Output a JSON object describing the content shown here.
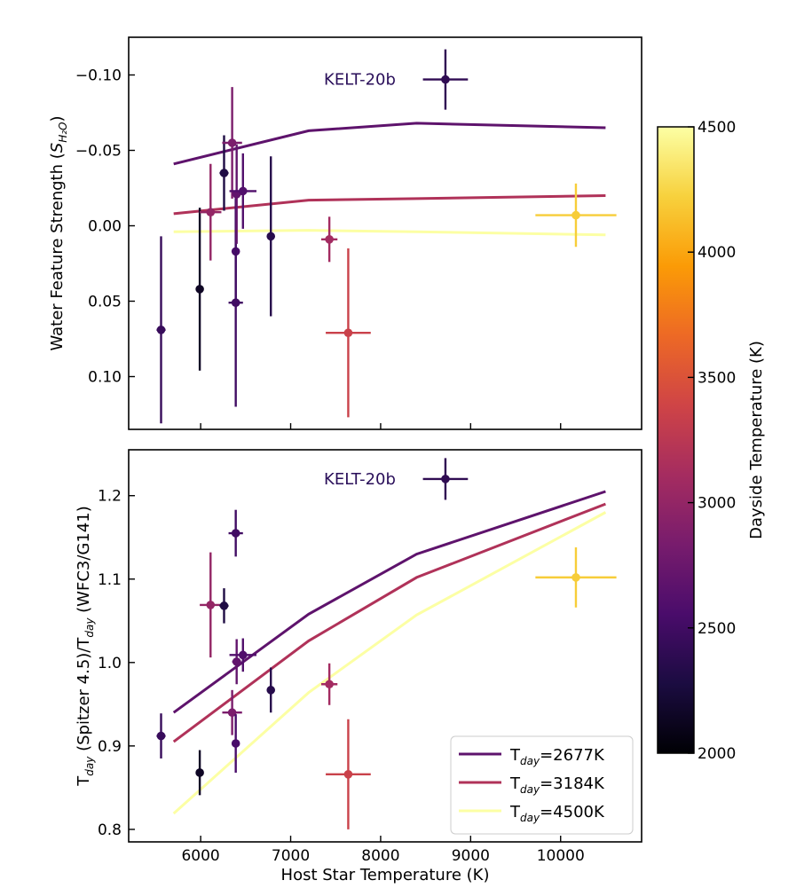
{
  "chart_data": [
    {
      "type": "scatter",
      "panel": "top",
      "ylabel_main": "Water Feature Strength (",
      "ylabel_sym": "S",
      "ylabel_sub": "H₂O",
      "ylabel_close": ")",
      "xlim": [
        5200,
        10900
      ],
      "ylim": [
        0.135,
        -0.125
      ],
      "y_inverted": true,
      "xticks": [
        6000,
        7000,
        8000,
        9000,
        10000
      ],
      "yticks": [
        -0.1,
        -0.05,
        0.0,
        0.05,
        0.1
      ],
      "ytick_labels": [
        "−0.10",
        "−0.05",
        "0.00",
        "0.05",
        "0.10"
      ],
      "annotation": {
        "text": "KELT-20b",
        "x": 7370,
        "y": -0.097
      },
      "points": [
        {
          "x": 5560,
          "y": 0.069,
          "xerr": 50,
          "yerr": 0.062,
          "tday": 2450
        },
        {
          "x": 5990,
          "y": 0.042,
          "xerr": 40,
          "yerr": 0.054,
          "tday": 2150
        },
        {
          "x": 6110,
          "y": -0.009,
          "xerr": 120,
          "yerr": 0.032,
          "tday": 3000
        },
        {
          "x": 6260,
          "y": -0.035,
          "xerr": 50,
          "yerr": 0.025,
          "tday": 2300
        },
        {
          "x": 6350,
          "y": -0.055,
          "xerr": 110,
          "yerr": 0.037,
          "tday": 2850
        },
        {
          "x": 6390,
          "y": 0.017,
          "xerr": 30,
          "yerr": 0.037,
          "tday": 2550
        },
        {
          "x": 6390,
          "y": 0.051,
          "xerr": 80,
          "yerr": 0.069,
          "tday": 2500
        },
        {
          "x": 6400,
          "y": -0.021,
          "xerr": 50,
          "yerr": 0.033,
          "tday": 2700
        },
        {
          "x": 6470,
          "y": -0.023,
          "xerr": 150,
          "yerr": 0.025,
          "tday": 2600
        },
        {
          "x": 6780,
          "y": 0.007,
          "xerr": 30,
          "yerr": 0.053,
          "tday": 2350
        },
        {
          "x": 7430,
          "y": 0.009,
          "xerr": 90,
          "yerr": 0.015,
          "tday": 3100
        },
        {
          "x": 7640,
          "y": 0.071,
          "xerr": 250,
          "yerr": 0.056,
          "tday": 3350
        },
        {
          "x": 8720,
          "y": -0.097,
          "xerr": 250,
          "yerr": 0.02,
          "tday": 2400
        },
        {
          "x": 10170,
          "y": -0.007,
          "xerr": 450,
          "yerr": 0.021,
          "tday": 4200
        }
      ],
      "series": [
        {
          "name": "T_day=2677K",
          "tday": 2677,
          "x": [
            5700,
            7200,
            8400,
            10500
          ],
          "values": [
            -0.041,
            -0.063,
            -0.068,
            -0.065
          ]
        },
        {
          "name": "T_day=3184K",
          "tday": 3184,
          "x": [
            5700,
            7200,
            8400,
            10500
          ],
          "values": [
            -0.008,
            -0.017,
            -0.018,
            -0.02
          ]
        },
        {
          "name": "T_day=4500K",
          "tday": 4500,
          "x": [
            5700,
            7200,
            8400,
            10500
          ],
          "values": [
            0.004,
            0.003,
            0.004,
            0.006
          ]
        }
      ]
    },
    {
      "type": "scatter",
      "panel": "bottom",
      "xlabel": "Host Star Temperature (K)",
      "ylabel_t1": "T",
      "ylabel_s1": "day",
      "ylabel_mid": " (Spitzer 4.5)/T",
      "ylabel_s2": "day",
      "ylabel_end": " (WFC3/G141)",
      "xlim": [
        5200,
        10900
      ],
      "ylim": [
        0.785,
        1.255
      ],
      "xticks": [
        6000,
        7000,
        8000,
        9000,
        10000
      ],
      "xtick_labels": [
        "6000",
        "7000",
        "8000",
        "9000",
        "10000"
      ],
      "yticks": [
        0.8,
        0.9,
        1.0,
        1.1,
        1.2
      ],
      "ytick_labels": [
        "0.8",
        "0.9",
        "1.0",
        "1.1",
        "1.2"
      ],
      "annotation": {
        "text": "KELT-20b",
        "x": 7370,
        "y": 1.22
      },
      "points": [
        {
          "x": 5560,
          "y": 0.912,
          "xerr": 50,
          "yerr": 0.027,
          "tday": 2450
        },
        {
          "x": 5990,
          "y": 0.868,
          "xerr": 40,
          "yerr": 0.027,
          "tday": 2150
        },
        {
          "x": 6110,
          "y": 1.069,
          "xerr": 120,
          "yerr": 0.063,
          "tday": 3000
        },
        {
          "x": 6260,
          "y": 1.068,
          "xerr": 50,
          "yerr": 0.021,
          "tday": 2300
        },
        {
          "x": 6350,
          "y": 0.94,
          "xerr": 110,
          "yerr": 0.027,
          "tday": 2850
        },
        {
          "x": 6390,
          "y": 0.903,
          "xerr": 30,
          "yerr": 0.035,
          "tday": 2550
        },
        {
          "x": 6390,
          "y": 1.155,
          "xerr": 80,
          "yerr": 0.028,
          "tday": 2500
        },
        {
          "x": 6400,
          "y": 1.001,
          "xerr": 50,
          "yerr": 0.027,
          "tday": 2700
        },
        {
          "x": 6470,
          "y": 1.009,
          "xerr": 150,
          "yerr": 0.02,
          "tday": 2600
        },
        {
          "x": 6780,
          "y": 0.967,
          "xerr": 30,
          "yerr": 0.027,
          "tday": 2350
        },
        {
          "x": 7430,
          "y": 0.974,
          "xerr": 90,
          "yerr": 0.025,
          "tday": 3100
        },
        {
          "x": 7640,
          "y": 0.866,
          "xerr": 250,
          "yerr": 0.066,
          "tday": 3350
        },
        {
          "x": 8720,
          "y": 1.22,
          "xerr": 250,
          "yerr": 0.025,
          "tday": 2400
        },
        {
          "x": 10170,
          "y": 1.102,
          "xerr": 450,
          "yerr": 0.036,
          "tday": 4200
        }
      ],
      "series": [
        {
          "name": "T_day=2677K",
          "tday": 2677,
          "x": [
            5700,
            7200,
            8400,
            10500
          ],
          "values": [
            0.94,
            1.058,
            1.13,
            1.205
          ]
        },
        {
          "name": "T_day=3184K",
          "tday": 3184,
          "x": [
            5700,
            7200,
            8400,
            10500
          ],
          "values": [
            0.905,
            1.026,
            1.102,
            1.19
          ]
        },
        {
          "name": "T_day=4500K",
          "tday": 4500,
          "x": [
            5700,
            7200,
            8400,
            10500
          ],
          "values": [
            0.819,
            0.964,
            1.057,
            1.18
          ]
        }
      ],
      "legend": {
        "placement": "bottom-right",
        "entries": [
          {
            "prefix": "T",
            "sub": "day",
            "suffix": "=2677K",
            "tday": 2677
          },
          {
            "prefix": "T",
            "sub": "day",
            "suffix": "=3184K",
            "tday": 3184
          },
          {
            "prefix": "T",
            "sub": "day",
            "suffix": "=4500K",
            "tday": 4500
          }
        ]
      }
    }
  ],
  "colorbar": {
    "label": "Dayside Temperature (K)",
    "range": [
      2000,
      4500
    ],
    "ticks": [
      2000,
      2500,
      3000,
      3500,
      4000,
      4500
    ],
    "tick_labels": [
      "2000",
      "2500",
      "3000",
      "3500",
      "4000",
      "4500"
    ],
    "colormap": "inferno",
    "color_stops": [
      "#000004",
      "#1b0c41",
      "#4a0c6b",
      "#781c6d",
      "#a52c60",
      "#cf4446",
      "#ed6925",
      "#fb9b06",
      "#f7d13d",
      "#fcffa4"
    ]
  }
}
